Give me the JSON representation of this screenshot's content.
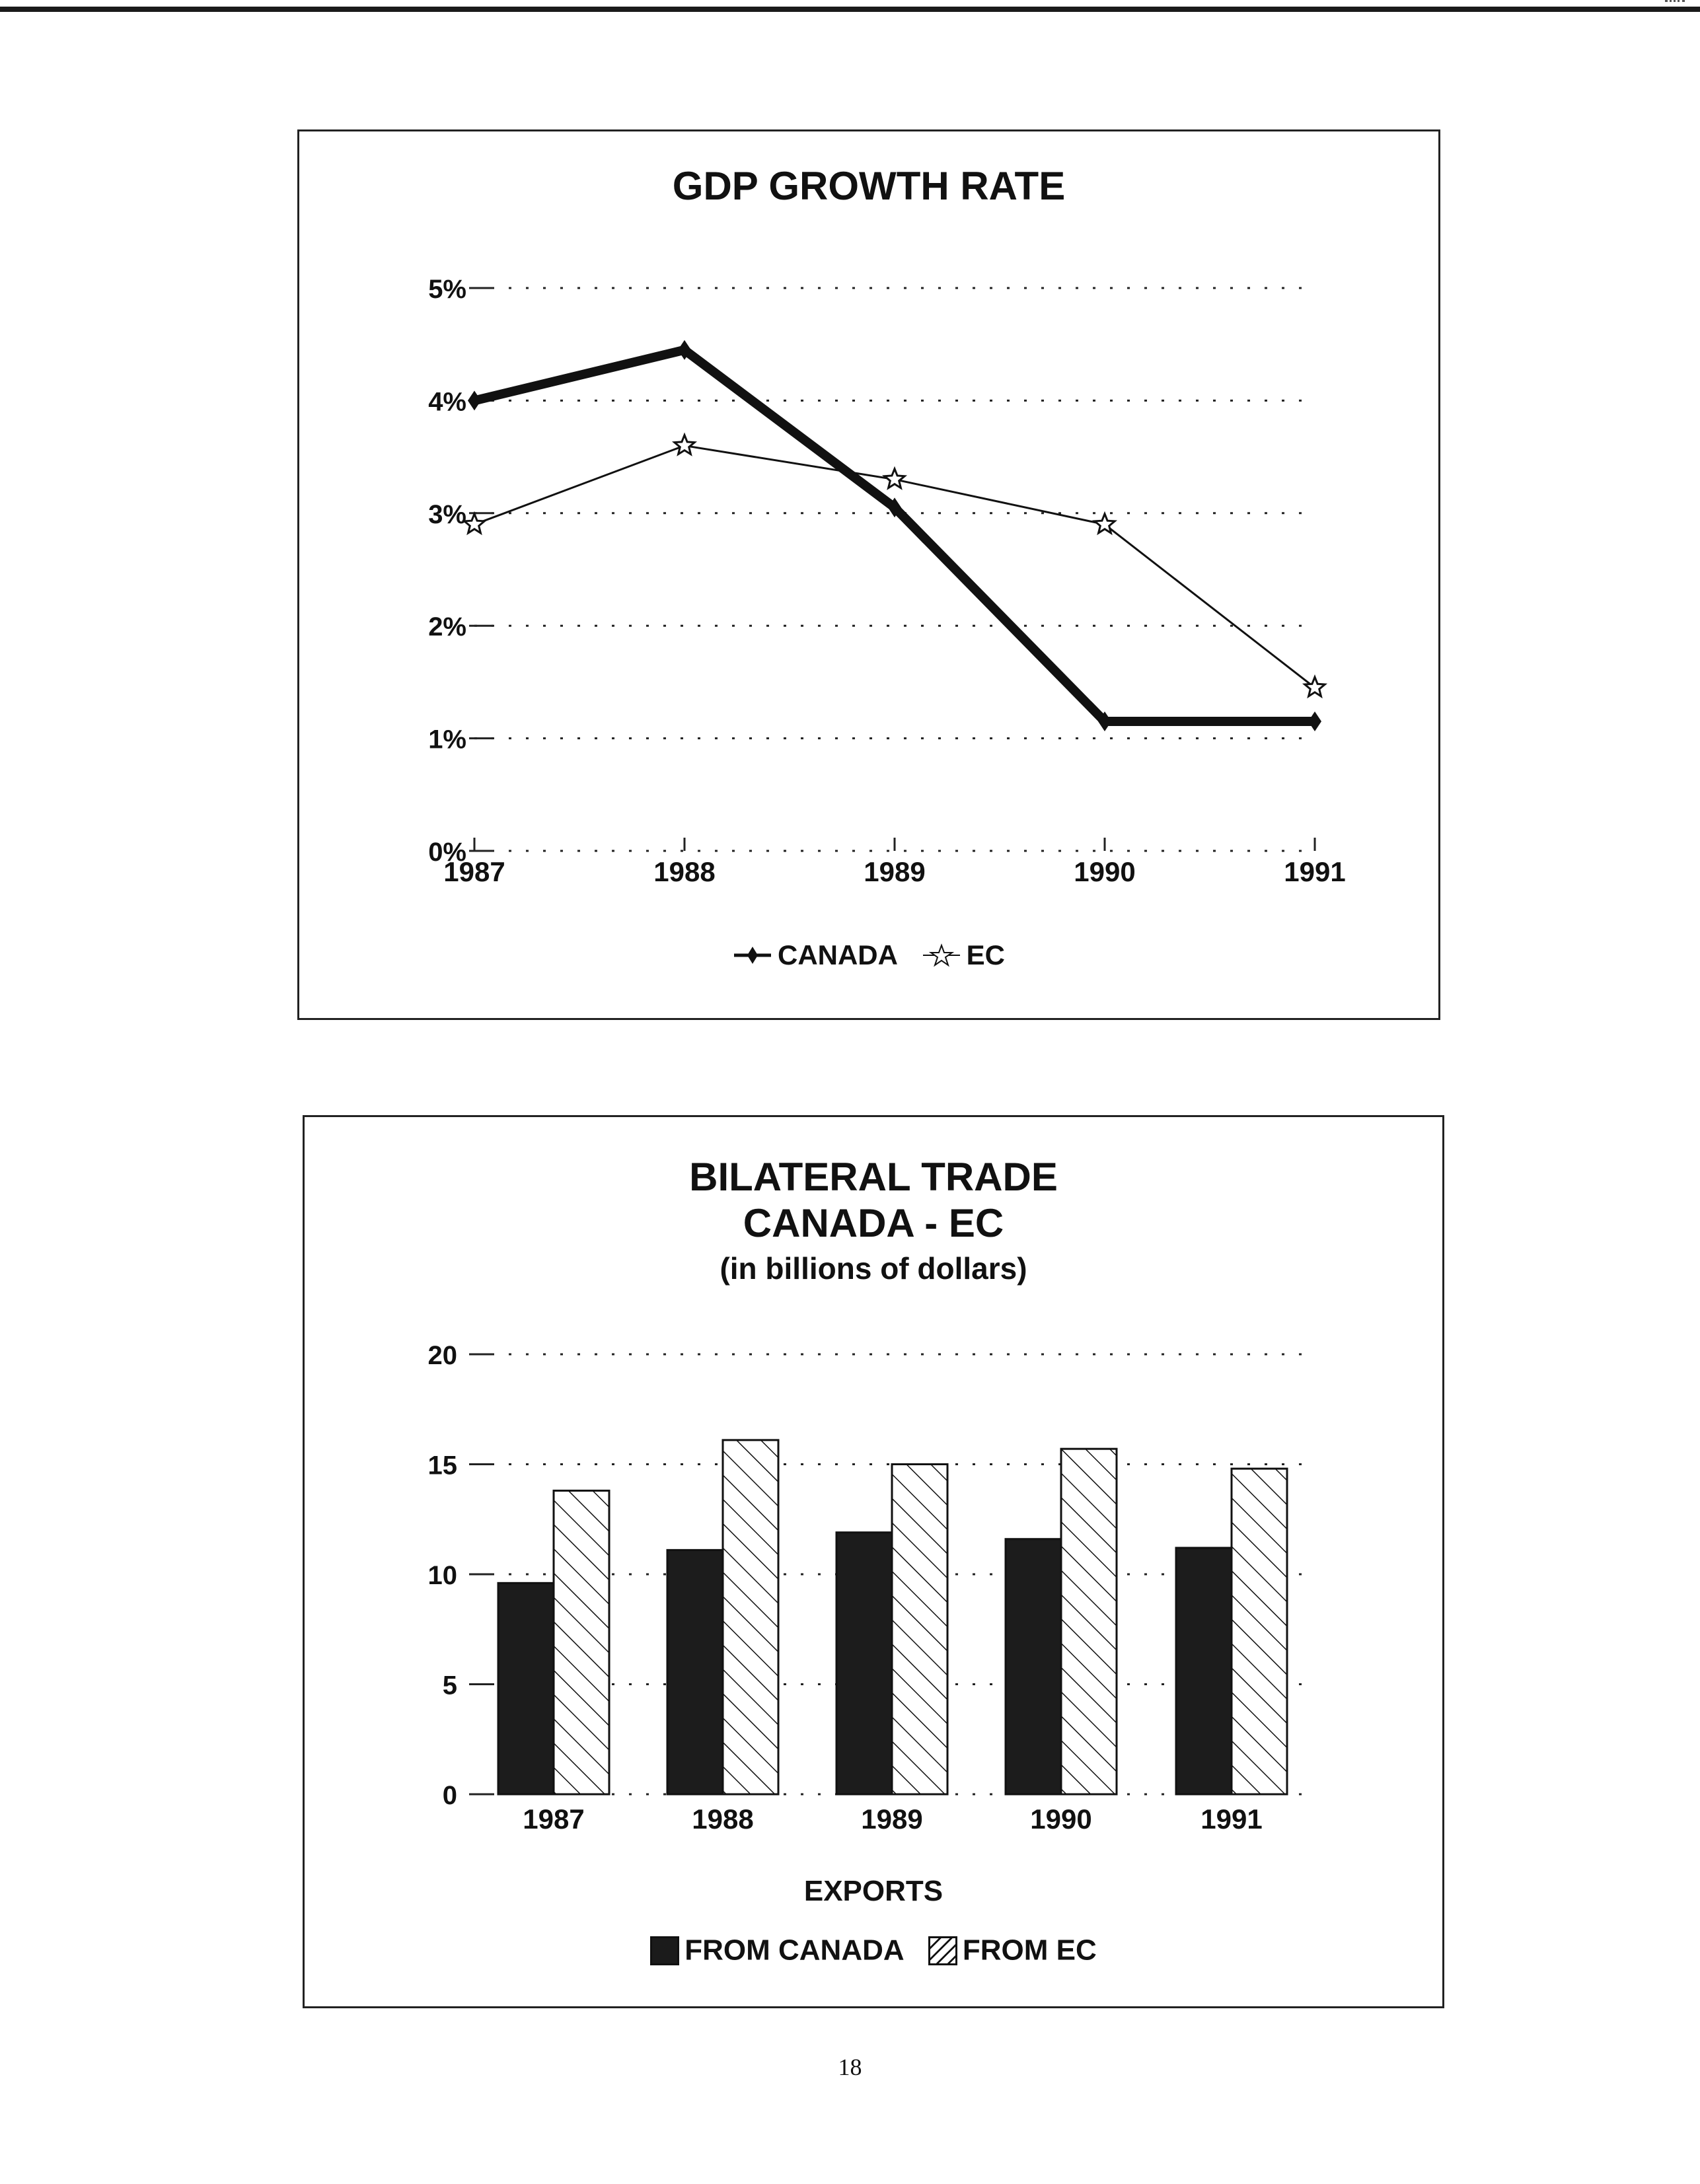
{
  "page_number": "18",
  "chart_data": [
    {
      "type": "line",
      "title": "GDP GROWTH RATE",
      "categories": [
        "1987",
        "1988",
        "1989",
        "1990",
        "1991"
      ],
      "ylim": [
        0,
        5
      ],
      "yticks": [
        "0%",
        "1%",
        "2%",
        "3%",
        "4%",
        "5%"
      ],
      "grid": true,
      "legend_position": "bottom",
      "series": [
        {
          "name": "CANADA",
          "values": [
            4.0,
            4.45,
            3.05,
            1.15,
            1.15
          ],
          "color": "#111111",
          "marker": "diamond-cross",
          "style": "thick"
        },
        {
          "name": "EC",
          "values": [
            2.9,
            3.6,
            3.3,
            2.9,
            1.45
          ],
          "color": "#111111",
          "marker": "star",
          "style": "thin"
        }
      ]
    },
    {
      "type": "bar",
      "title": "BILATERAL TRADE",
      "title_line2": "CANADA - EC",
      "subtitle": "(in billions of dollars)",
      "categories": [
        "1987",
        "1988",
        "1989",
        "1990",
        "1991"
      ],
      "ylim": [
        0,
        20
      ],
      "yticks": [
        "0",
        "5",
        "10",
        "15",
        "20"
      ],
      "grid": true,
      "legend_title": "EXPORTS",
      "legend_position": "bottom",
      "series": [
        {
          "name": "FROM CANADA",
          "values": [
            9.6,
            11.1,
            11.9,
            11.6,
            11.2
          ],
          "fill": "solid-dark"
        },
        {
          "name": "FROM EC",
          "values": [
            13.8,
            16.1,
            15.0,
            15.7,
            14.8
          ],
          "fill": "hatched"
        }
      ]
    }
  ]
}
